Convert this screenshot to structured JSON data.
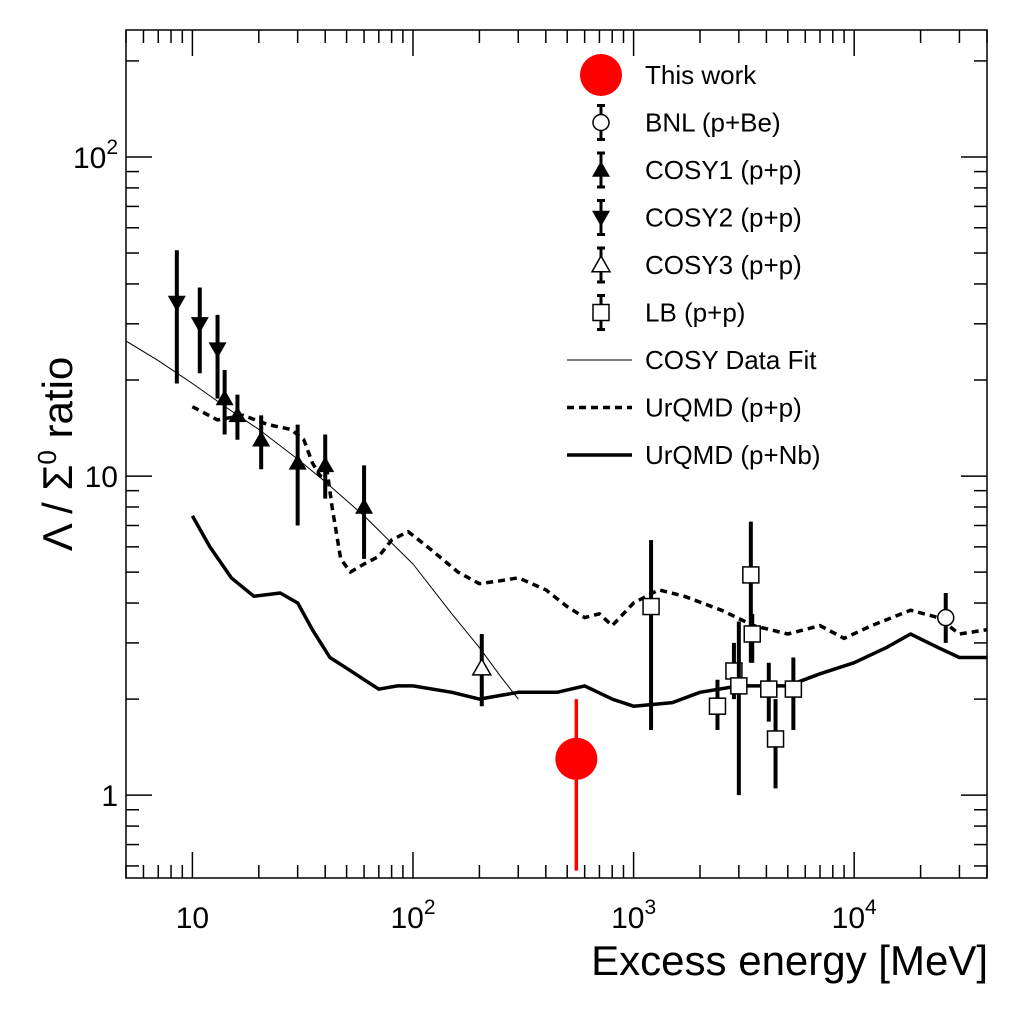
{
  "chart_data": {
    "type": "scatter",
    "title": "",
    "xlabel": "Excess energy [MeV]",
    "ylabel_parts": {
      "lambda": "Λ / Σ",
      "sup": "0",
      "rest": " ratio"
    },
    "x_scale": "log",
    "y_scale": "log",
    "xlim": [
      5,
      40000
    ],
    "ylim": [
      0.55,
      250
    ],
    "x_major_ticks": [
      {
        "value": 10,
        "base": "10",
        "exp": ""
      },
      {
        "value": 100,
        "base": "10",
        "exp": "2"
      },
      {
        "value": 1000,
        "base": "10",
        "exp": "3"
      },
      {
        "value": 10000,
        "base": "10",
        "exp": "4"
      }
    ],
    "y_major_ticks": [
      {
        "value": 1,
        "base": "1",
        "exp": ""
      },
      {
        "value": 10,
        "base": "10",
        "exp": ""
      },
      {
        "value": 100,
        "base": "10",
        "exp": "2"
      }
    ],
    "grid": false,
    "legend_position": "top-right",
    "series": [
      {
        "name": "This work",
        "kind": "points",
        "marker": "big-circle",
        "color": "#ff0000",
        "points": [
          {
            "x": 550,
            "y": 1.3,
            "ylo": 0.58,
            "yhi": 2.0
          }
        ]
      },
      {
        "name": "BNL (p+Be)",
        "kind": "points",
        "marker": "open-circle",
        "color": "#000000",
        "points": [
          {
            "x": 26000,
            "y": 3.6,
            "ylo": 3.0,
            "yhi": 4.3
          }
        ]
      },
      {
        "name": "COSY1 (p+p)",
        "kind": "points",
        "marker": "filled-triangle-up",
        "color": "#000000",
        "points": [
          {
            "x": 14,
            "y": 17.5,
            "ylo": 13.5,
            "yhi": 21.5
          },
          {
            "x": 16,
            "y": 15.5,
            "ylo": 13.0,
            "yhi": 18.0
          },
          {
            "x": 20.5,
            "y": 13.0,
            "ylo": 10.5,
            "yhi": 15.5
          },
          {
            "x": 30,
            "y": 11.0,
            "ylo": 7.0,
            "yhi": 14.5
          },
          {
            "x": 40,
            "y": 10.8,
            "ylo": 8.5,
            "yhi": 13.5
          },
          {
            "x": 60,
            "y": 8.0,
            "ylo": 5.5,
            "yhi": 10.8
          }
        ]
      },
      {
        "name": "COSY2 (p+p)",
        "kind": "points",
        "marker": "filled-triangle-down",
        "color": "#000000",
        "points": [
          {
            "x": 8.5,
            "y": 35,
            "ylo": 19.5,
            "yhi": 51
          },
          {
            "x": 10.8,
            "y": 30,
            "ylo": 21,
            "yhi": 39
          },
          {
            "x": 13,
            "y": 25,
            "ylo": 17.5,
            "yhi": 32
          }
        ]
      },
      {
        "name": "COSY3 (p+p)",
        "kind": "points",
        "marker": "open-triangle-up",
        "color": "#000000",
        "points": [
          {
            "x": 205,
            "y": 2.5,
            "ylo": 1.9,
            "yhi": 3.2
          }
        ]
      },
      {
        "name": "LB (p+p)",
        "kind": "points",
        "marker": "open-square",
        "color": "#000000",
        "points": [
          {
            "x": 1200,
            "y": 3.9,
            "ylo": 1.6,
            "yhi": 6.3
          },
          {
            "x": 2400,
            "y": 1.9,
            "ylo": 1.6,
            "yhi": 2.3
          },
          {
            "x": 2850,
            "y": 2.45,
            "ylo": 2.0,
            "yhi": 3.0
          },
          {
            "x": 3000,
            "y": 2.2,
            "ylo": 1.0,
            "yhi": 3.5
          },
          {
            "x": 3400,
            "y": 4.9,
            "ylo": 2.6,
            "yhi": 7.2
          },
          {
            "x": 3450,
            "y": 3.2,
            "ylo": 2.6,
            "yhi": 3.7
          },
          {
            "x": 4100,
            "y": 2.15,
            "ylo": 1.7,
            "yhi": 2.6
          },
          {
            "x": 4400,
            "y": 1.5,
            "ylo": 1.05,
            "yhi": 2.0
          },
          {
            "x": 5300,
            "y": 2.15,
            "ylo": 1.6,
            "yhi": 2.7
          }
        ]
      },
      {
        "name": "COSY Data Fit",
        "kind": "line",
        "style": "thin-solid",
        "color": "#000000",
        "points": [
          {
            "x": 5,
            "y": 26.5
          },
          {
            "x": 7,
            "y": 23
          },
          {
            "x": 10,
            "y": 19.5
          },
          {
            "x": 15,
            "y": 16
          },
          {
            "x": 20,
            "y": 14
          },
          {
            "x": 30,
            "y": 11.3
          },
          {
            "x": 40,
            "y": 9.6
          },
          {
            "x": 60,
            "y": 7.5
          },
          {
            "x": 100,
            "y": 5.3
          },
          {
            "x": 150,
            "y": 3.7
          },
          {
            "x": 200,
            "y": 2.9
          },
          {
            "x": 250,
            "y": 2.35
          },
          {
            "x": 300,
            "y": 2.0
          }
        ]
      },
      {
        "name": "UrQMD (p+p)",
        "kind": "line",
        "style": "dashed",
        "color": "#000000",
        "points": [
          {
            "x": 10,
            "y": 16.5
          },
          {
            "x": 13,
            "y": 15
          },
          {
            "x": 17,
            "y": 15.5
          },
          {
            "x": 22,
            "y": 14.5
          },
          {
            "x": 28,
            "y": 14
          },
          {
            "x": 32,
            "y": 13
          },
          {
            "x": 35,
            "y": 11
          },
          {
            "x": 38,
            "y": 10
          },
          {
            "x": 40,
            "y": 11.5
          },
          {
            "x": 43,
            "y": 8
          },
          {
            "x": 47,
            "y": 5.5
          },
          {
            "x": 52,
            "y": 5.0
          },
          {
            "x": 60,
            "y": 5.3
          },
          {
            "x": 70,
            "y": 5.6
          },
          {
            "x": 80,
            "y": 6.3
          },
          {
            "x": 95,
            "y": 6.7
          },
          {
            "x": 120,
            "y": 5.9
          },
          {
            "x": 160,
            "y": 5.0
          },
          {
            "x": 200,
            "y": 4.6
          },
          {
            "x": 250,
            "y": 4.7
          },
          {
            "x": 300,
            "y": 4.8
          },
          {
            "x": 400,
            "y": 4.4
          },
          {
            "x": 500,
            "y": 3.9
          },
          {
            "x": 600,
            "y": 3.6
          },
          {
            "x": 700,
            "y": 3.7
          },
          {
            "x": 800,
            "y": 3.4
          },
          {
            "x": 1000,
            "y": 4.0
          },
          {
            "x": 1300,
            "y": 4.4
          },
          {
            "x": 1700,
            "y": 4.2
          },
          {
            "x": 2500,
            "y": 3.8
          },
          {
            "x": 3500,
            "y": 3.4
          },
          {
            "x": 5000,
            "y": 3.2
          },
          {
            "x": 7000,
            "y": 3.4
          },
          {
            "x": 9000,
            "y": 3.1
          },
          {
            "x": 12000,
            "y": 3.4
          },
          {
            "x": 18000,
            "y": 3.8
          },
          {
            "x": 24000,
            "y": 3.6
          },
          {
            "x": 30000,
            "y": 3.2
          },
          {
            "x": 40000,
            "y": 3.3
          }
        ]
      },
      {
        "name": "UrQMD (p+Nb)",
        "kind": "line",
        "style": "thick-solid",
        "color": "#000000",
        "points": [
          {
            "x": 10,
            "y": 7.5
          },
          {
            "x": 12,
            "y": 6.0
          },
          {
            "x": 15,
            "y": 4.8
          },
          {
            "x": 19,
            "y": 4.2
          },
          {
            "x": 25,
            "y": 4.3
          },
          {
            "x": 30,
            "y": 4.0
          },
          {
            "x": 35,
            "y": 3.3
          },
          {
            "x": 42,
            "y": 2.7
          },
          {
            "x": 50,
            "y": 2.5
          },
          {
            "x": 60,
            "y": 2.3
          },
          {
            "x": 70,
            "y": 2.15
          },
          {
            "x": 85,
            "y": 2.2
          },
          {
            "x": 100,
            "y": 2.2
          },
          {
            "x": 150,
            "y": 2.1
          },
          {
            "x": 200,
            "y": 2.0
          },
          {
            "x": 300,
            "y": 2.1
          },
          {
            "x": 450,
            "y": 2.1
          },
          {
            "x": 600,
            "y": 2.2
          },
          {
            "x": 800,
            "y": 2.0
          },
          {
            "x": 1000,
            "y": 1.9
          },
          {
            "x": 1500,
            "y": 1.95
          },
          {
            "x": 2000,
            "y": 2.1
          },
          {
            "x": 3000,
            "y": 2.2
          },
          {
            "x": 5000,
            "y": 2.2
          },
          {
            "x": 7000,
            "y": 2.4
          },
          {
            "x": 10000,
            "y": 2.6
          },
          {
            "x": 14000,
            "y": 2.9
          },
          {
            "x": 18000,
            "y": 3.2
          },
          {
            "x": 24000,
            "y": 2.9
          },
          {
            "x": 30000,
            "y": 2.7
          },
          {
            "x": 40000,
            "y": 2.7
          }
        ]
      }
    ]
  }
}
